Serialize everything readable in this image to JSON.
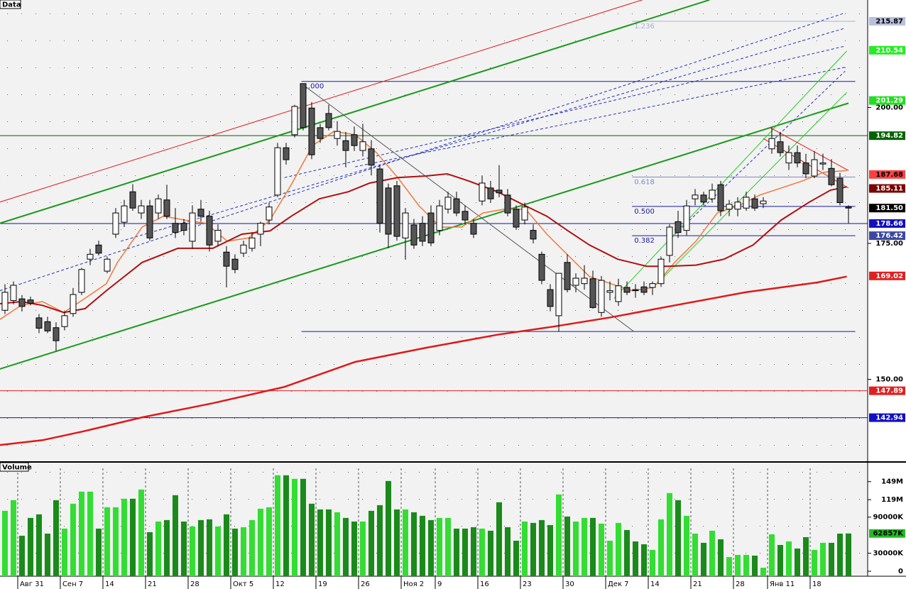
{
  "chart_data": {
    "type": "candlestick",
    "panel_label": "Data",
    "xlim": [
      -0.58,
      101.25
    ],
    "xticks": [
      {
        "value": 2,
        "label": "Авг 31"
      },
      {
        "value": 7,
        "label": "Сен 7"
      },
      {
        "value": 12,
        "label": "14"
      },
      {
        "value": 17,
        "label": "21"
      },
      {
        "value": 22,
        "label": "28"
      },
      {
        "value": 27,
        "label": "Окт 5"
      },
      {
        "value": 32,
        "label": "12"
      },
      {
        "value": 37,
        "label": "19"
      },
      {
        "value": 42,
        "label": "26"
      },
      {
        "value": 47,
        "label": "Ноя 2"
      },
      {
        "value": 51,
        "label": "9"
      },
      {
        "value": 56,
        "label": "16"
      },
      {
        "value": 61,
        "label": "23"
      },
      {
        "value": 66,
        "label": "30"
      },
      {
        "value": 71,
        "label": "Дек 7"
      },
      {
        "value": 76,
        "label": "14"
      },
      {
        "value": 81,
        "label": "21"
      },
      {
        "value": 86,
        "label": "28"
      },
      {
        "value": 90,
        "label": "Янв 11"
      },
      {
        "value": 95,
        "label": "18"
      }
    ],
    "ylim": [
      134.92,
      219.78
    ],
    "yticks": [
      {
        "value": 200,
        "label": "200.00"
      },
      {
        "value": 175,
        "label": "175.00"
      },
      {
        "value": 150,
        "label": "150.00"
      }
    ],
    "up_color": "#ffffff",
    "down_color": "#555555",
    "open": [
      162.7,
      164.5,
      164.8,
      164.6,
      161.3,
      160.6,
      159.5,
      159.7,
      162.1,
      166.0,
      172.1,
      174.7,
      169.9,
      176.7,
      178.9,
      184.5,
      180.6,
      181.9,
      180.6,
      183.0,
      178.7,
      178.7,
      175.4,
      181.3,
      180.0,
      175.4,
      173.4,
      172.1,
      173.2,
      174.1,
      176.7,
      179.3,
      183.9,
      192.6,
      195.0,
      204.4,
      199.9,
      196.3,
      198.9,
      194.3,
      193.9,
      195.0,
      192.1,
      192.4,
      188.7,
      185.2,
      185.6,
      176.0,
      178.4,
      178.7,
      180.6,
      177.4,
      181.3,
      183.2,
      180.9,
      178.7,
      182.8,
      185.2,
      184.8,
      183.9,
      181.3,
      179.3,
      177.4,
      173.0,
      166.5,
      161.7,
      171.5,
      167.3,
      167.6,
      168.5,
      162.3,
      166.0,
      164.3,
      166.9,
      166.5,
      167.0,
      166.9,
      167.6,
      172.8,
      179.0,
      177.4,
      183.2,
      183.9,
      183.2,
      185.8,
      181.3,
      181.3,
      181.5,
      183.2,
      182.3,
      192.4,
      193.7,
      189.8,
      191.7,
      189.8,
      187.4,
      189.6,
      188.8,
      187.0,
      181.7
    ],
    "high": [
      167.5,
      168.0,
      165.5,
      165.2,
      162.0,
      161.5,
      160.5,
      162.5,
      166.8,
      170.5,
      174.0,
      175.5,
      172.5,
      181.5,
      183.0,
      185.9,
      183.0,
      183.0,
      184.0,
      185.8,
      181.5,
      179.5,
      182.0,
      183.0,
      181.0,
      178.5,
      174.5,
      173.0,
      175.5,
      177.0,
      179.0,
      182.5,
      193.5,
      193.5,
      200.5,
      204.4,
      201.0,
      197.0,
      200.5,
      197.5,
      195.5,
      196.5,
      197.0,
      194.0,
      189.5,
      186.0,
      186.5,
      181.5,
      179.5,
      180.0,
      182.0,
      183.0,
      184.5,
      184.5,
      182.0,
      179.5,
      187.5,
      186.5,
      189.4,
      185.0,
      182.0,
      182.5,
      178.5,
      173.5,
      167.5,
      169.5,
      173.0,
      169.5,
      171.0,
      170.0,
      169.0,
      168.0,
      168.5,
      168.0,
      167.5,
      168.0,
      168.0,
      172.5,
      178.5,
      181.0,
      183.0,
      185.0,
      184.5,
      186.0,
      186.5,
      183.0,
      183.5,
      184.5,
      184.0,
      183.5,
      196.3,
      195.5,
      193.0,
      193.0,
      191.5,
      192.0,
      191.5,
      190.5,
      188.0,
      182.0
    ],
    "low": [
      162.0,
      163.8,
      162.5,
      163.6,
      158.5,
      158.5,
      155.2,
      159.0,
      161.5,
      165.5,
      171.0,
      172.8,
      169.5,
      176.0,
      178.0,
      181.0,
      179.5,
      175.5,
      179.5,
      179.5,
      176.0,
      176.5,
      174.0,
      179.0,
      173.5,
      174.5,
      166.9,
      169.5,
      172.5,
      173.5,
      174.5,
      178.5,
      183.5,
      189.5,
      194.5,
      195.8,
      190.5,
      193.5,
      195.8,
      193.0,
      189.0,
      192.0,
      191.0,
      187.5,
      177.0,
      174.1,
      175.5,
      172.0,
      174.0,
      174.5,
      174.5,
      176.5,
      180.5,
      180.0,
      178.5,
      176.0,
      182.0,
      182.5,
      183.5,
      180.0,
      177.5,
      178.5,
      175.0,
      167.5,
      162.5,
      158.8,
      166.0,
      166.0,
      166.5,
      163.0,
      161.5,
      164.5,
      163.5,
      165.5,
      165.0,
      165.5,
      165.5,
      167.0,
      171.5,
      176.0,
      176.5,
      182.0,
      182.0,
      182.5,
      180.0,
      180.0,
      180.0,
      181.0,
      181.0,
      181.5,
      191.5,
      191.0,
      188.5,
      189.0,
      187.0,
      187.0,
      188.5,
      185.5,
      182.0,
      178.7
    ],
    "close": [
      166.0,
      167.3,
      163.4,
      164.0,
      159.4,
      158.9,
      157.1,
      161.7,
      165.6,
      170.2,
      173.0,
      173.2,
      172.1,
      180.6,
      181.9,
      181.5,
      181.9,
      176.0,
      183.2,
      180.0,
      177.0,
      177.4,
      180.6,
      180.0,
      174.7,
      177.4,
      170.8,
      170.2,
      174.7,
      176.0,
      178.7,
      181.7,
      192.6,
      190.4,
      200.2,
      196.3,
      191.3,
      194.3,
      196.3,
      195.6,
      192.1,
      193.0,
      193.7,
      189.4,
      178.7,
      176.7,
      176.3,
      180.6,
      174.7,
      175.4,
      175.1,
      181.9,
      183.5,
      180.6,
      179.3,
      176.7,
      186.1,
      183.2,
      184.3,
      180.6,
      178.0,
      181.7,
      175.8,
      168.2,
      163.4,
      169.5,
      166.5,
      168.6,
      168.6,
      163.2,
      168.2,
      166.3,
      167.2,
      166.0,
      166.3,
      166.0,
      167.6,
      172.1,
      178.0,
      177.0,
      181.9,
      183.9,
      182.6,
      184.8,
      181.0,
      182.2,
      182.6,
      183.5,
      181.5,
      182.8,
      194.3,
      191.7,
      191.7,
      189.8,
      187.8,
      190.4,
      189.8,
      185.8,
      182.5,
      181.5
    ],
    "moving_averages": [
      {
        "color": "#f07838",
        "width": 1.5,
        "x": [
          -0.6,
          1.9,
          4.4,
          6.9,
          9.4,
          11.9,
          13.2,
          16.1,
          18.6,
          21.1,
          23.6,
          26.1,
          28.6,
          31.1,
          33.6,
          36.1,
          38.6,
          41.1,
          43.6,
          46.1,
          48.6,
          51.1,
          53.6,
          56.1,
          58.6,
          61.1,
          63.6,
          66.1,
          68.6,
          71.1,
          73.6,
          76.1,
          78.6,
          81.1,
          83.6,
          86.1,
          88.6,
          91.1,
          93.6,
          96.1,
          98.8
        ],
        "values": [
          161.0,
          163.6,
          164.3,
          162.3,
          164.9,
          167.6,
          171.5,
          178.0,
          180.0,
          179.3,
          178.7,
          175.4,
          176.0,
          179.3,
          185.8,
          193.0,
          195.6,
          195.0,
          191.7,
          187.1,
          181.9,
          178.0,
          178.0,
          180.6,
          181.3,
          181.3,
          176.7,
          172.8,
          168.9,
          167.6,
          166.3,
          166.9,
          171.5,
          175.4,
          180.6,
          181.9,
          183.9,
          185.2,
          186.5,
          188.1,
          188.4
        ]
      },
      {
        "color": "#b01010",
        "width": 2,
        "x": [
          -0.6,
          1.9,
          4.4,
          6.9,
          9.4,
          11.9,
          16.1,
          20.3,
          24.4,
          27.8,
          31.1,
          33.6,
          36.9,
          40.3,
          42.8,
          46.1,
          49.4,
          51.9,
          54.4,
          57.8,
          61.1,
          63.6,
          66.1,
          68.6,
          71.9,
          75.3,
          77.8,
          81.1,
          84.4,
          87.8,
          91.1,
          94.4,
          96.9,
          98.8
        ],
        "values": [
          163.9,
          164.3,
          163.6,
          162.3,
          163.0,
          166.3,
          171.5,
          174.1,
          174.1,
          176.7,
          177.3,
          180.0,
          183.2,
          184.5,
          186.1,
          187.1,
          187.4,
          187.8,
          186.5,
          184.5,
          181.9,
          180.0,
          177.3,
          174.7,
          172.1,
          170.8,
          170.8,
          171.0,
          172.1,
          174.7,
          179.3,
          182.6,
          184.8,
          185.4
        ]
      },
      {
        "color": "#e01818",
        "width": 2.5,
        "x": [
          -0.6,
          4.4,
          9.4,
          16.1,
          24.4,
          32.8,
          41.1,
          49.4,
          57.8,
          64.4,
          71.1,
          78.6,
          86.9,
          95.3,
          98.8
        ],
        "values": [
          137.9,
          138.8,
          140.5,
          143.0,
          145.6,
          148.6,
          153.2,
          155.8,
          158.2,
          159.7,
          161.4,
          163.6,
          166.0,
          167.8,
          168.9
        ]
      }
    ],
    "lines": [
      {
        "color": "#1a9a1a",
        "width": 2,
        "x": [
          -0.6,
          99.0
        ],
        "y": [
          151.9,
          200.8
        ]
      },
      {
        "color": "#1a9a1a",
        "width": 2,
        "x": [
          -0.6,
          82.7
        ],
        "y": [
          178.7,
          219.8
        ]
      },
      {
        "color": "#e01818",
        "width": 1,
        "x": [
          -0.6,
          74.8
        ],
        "y": [
          182.6,
          219.8
        ]
      },
      {
        "color": "#2030c0",
        "width": 1,
        "dash": true,
        "x": [
          -0.6,
          98.6
        ],
        "y": [
          166.3,
          217.4
        ]
      },
      {
        "color": "#2030c0",
        "width": 1,
        "dash": true,
        "x": [
          13.6,
          98.6
        ],
        "y": [
          175.4,
          214.6
        ]
      },
      {
        "color": "#2030c0",
        "width": 1,
        "dash": true,
        "x": [
          32.8,
          98.6
        ],
        "y": [
          187.1,
          211.3
        ]
      },
      {
        "color": "#2030c0",
        "width": 1,
        "dash": true,
        "x": [
          41.1,
          98.6
        ],
        "y": [
          189.1,
          207.4
        ]
      },
      {
        "color": "#2030c0",
        "width": 1,
        "dash": true,
        "x": [
          77.8,
          98.6
        ],
        "y": [
          175.4,
          206.7
        ]
      },
      {
        "color": "#555555",
        "width": 1,
        "x": [
          34.8,
          73.8
        ],
        "y": [
          204.4,
          158.8
        ]
      },
      {
        "color": "#22cc22",
        "width": 1,
        "x": [
          71.5,
          98.8
        ],
        "y": [
          164.9,
          210.4
        ]
      },
      {
        "color": "#22cc22",
        "width": 1,
        "x": [
          76.1,
          98.8
        ],
        "y": [
          166.9,
          202.8
        ]
      },
      {
        "color": "#e01818",
        "width": 1,
        "x": [
          89.8,
          99.0
        ],
        "y": [
          196.3,
          188.4
        ]
      },
      {
        "color": "#e01818",
        "width": 1,
        "x": [
          89.0,
          99.0
        ],
        "y": [
          194.3,
          185.2
        ]
      }
    ],
    "fib_levels": [
      {
        "label": "1.236",
        "value": 215.87,
        "x": [
          73.6,
          99.8
        ],
        "color": "#a8b0d8"
      },
      {
        "label": "1.000",
        "value": 204.8,
        "x": [
          34.8,
          99.8
        ],
        "color": "#1a1aa0"
      },
      {
        "label": "0.618",
        "value": 187.2,
        "x": [
          73.6,
          99.8
        ],
        "color": "#8088c8"
      },
      {
        "label": "0.500",
        "value": 181.8,
        "x": [
          73.6,
          99.8
        ],
        "color": "#1a1aa0"
      },
      {
        "label": "0.382",
        "value": 176.42,
        "x": [
          73.6,
          99.8
        ],
        "color": "#1a1aa0"
      },
      {
        "value": 158.8,
        "x": [
          34.8,
          99.8
        ],
        "color": "#1a1aa0"
      }
    ],
    "levels": [
      {
        "value": 215.87,
        "bg": "#b8c0dc",
        "fg": "#000000"
      },
      {
        "value": 210.54,
        "bg": "#22ee22",
        "fg": "#ffffff"
      },
      {
        "value": 201.29,
        "bg": "#22dd22",
        "fg": "#ffffff"
      },
      {
        "value": 194.82,
        "bg": "#006400",
        "fg": "#ffffff",
        "line": true
      },
      {
        "value": 187.68,
        "bg": "#ff4040",
        "fg": "#000000"
      },
      {
        "value": 185.11,
        "bg": "#7a0000",
        "fg": "#ffffff"
      },
      {
        "value": 181.5,
        "label": "181.50",
        "bg": "#000000",
        "fg": "#ffffff"
      },
      {
        "value": 178.66,
        "bg": "#1010c0",
        "fg": "#ffffff",
        "line": true
      },
      {
        "value": 176.42,
        "bg": "#3b4aa0",
        "fg": "#ffffff"
      },
      {
        "value": 169.02,
        "bg": "#e02020",
        "fg": "#ffffff"
      },
      {
        "value": 147.89,
        "bg": "#e02020",
        "fg": "#ffffff",
        "line": true
      },
      {
        "value": 142.94,
        "bg": "#1010c0",
        "fg": "#ffffff",
        "line": true
      }
    ],
    "volume": {
      "panel_label": "Volume",
      "ylim": [
        0,
        177
      ],
      "yticks": [
        {
          "value": 149,
          "label": "149M"
        },
        {
          "value": 119,
          "label": "119M"
        },
        {
          "value": 90,
          "label": "90000K"
        },
        {
          "value": 30,
          "label": "30000K"
        },
        0
      ],
      "up_color": "#33dd33",
      "down_color": "#1a8a1a",
      "last_label": {
        "value": 62.857,
        "label": "62857K",
        "bg": "#22bb22"
      },
      "values": [
        100.5,
        118.2,
        59.1,
        88.7,
        94.6,
        62.6,
        118.2,
        70.9,
        112.3,
        132.4,
        132.4,
        70.9,
        106.4,
        106.4,
        120.6,
        120.6,
        135.9,
        65.0,
        82.7,
        85.1,
        126.5,
        82.7,
        74.5,
        85.1,
        86.3,
        74.5,
        94.6,
        70.9,
        73.3,
        85.1,
        104.0,
        106.4,
        159.6,
        159.6,
        153.7,
        153.7,
        112.3,
        102.8,
        102.8,
        98.1,
        88.7,
        82.7,
        82.7,
        100.5,
        109.9,
        150.1,
        102.8,
        102.8,
        98.1,
        92.2,
        85.1,
        88.7,
        88.7,
        70.9,
        70.9,
        73.3,
        70.9,
        67.4,
        114.7,
        73.3,
        50.8,
        82.7,
        80.4,
        85.1,
        76.8,
        127.7,
        91.0,
        82.7,
        88.7,
        88.7,
        79.2,
        50.8,
        80.4,
        68.6,
        49.6,
        44.9,
        35.5,
        86.3,
        130.0,
        118.2,
        92.2,
        62.6,
        47.3,
        67.4,
        53.2,
        23.6,
        27.2,
        27.2,
        26.0,
        5.9,
        61.5,
        43.7,
        49.6,
        37.8,
        56.7,
        35.5,
        47.3,
        47.3,
        62.6,
        62.857
      ]
    }
  }
}
